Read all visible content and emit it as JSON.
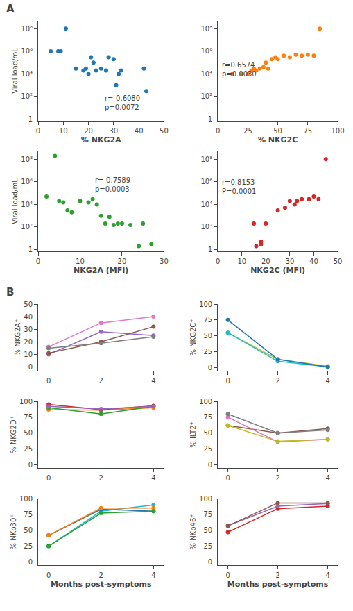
{
  "chart_data": [
    {
      "type": "scatter",
      "title": "A",
      "marker": "circle",
      "log": "y",
      "grid": false,
      "x": [
        5,
        8,
        9,
        11,
        15,
        18,
        19,
        20,
        21,
        22,
        23,
        25,
        27,
        28,
        30,
        31,
        32,
        33,
        42,
        43
      ],
      "values": [
        1000000.0,
        1000000.0,
        1000000.0,
        100000000.0,
        30000.0,
        20000.0,
        30000.0,
        10000.0,
        300000.0,
        100000.0,
        20000.0,
        30000.0,
        20000.0,
        300000.0,
        200000.0,
        1000.0,
        10000.0,
        20000.0,
        30000.0,
        300.0
      ],
      "xlabel": "% NKG2A",
      "ylabel": "Viral load/mL",
      "xlim": [
        0,
        50
      ],
      "xticks": [
        0,
        10,
        20,
        30,
        40,
        50
      ],
      "ylim": [
        0.7,
        500000000.0
      ],
      "yticks": [
        1,
        {
          "value": 100,
          "label": "10²"
        },
        {
          "value": 10000,
          "label": "10⁴"
        },
        {
          "value": 1000000,
          "label": "10⁶"
        },
        {
          "value": 100000000,
          "label": "10⁸"
        }
      ],
      "annotations": [
        "r=-0.6080\np=0.0072"
      ]
    },
    {
      "type": "scatter",
      "marker": "circle",
      "log": "y",
      "grid": false,
      "x": [
        12,
        20,
        25,
        28,
        30,
        32,
        35,
        38,
        40,
        42,
        45,
        48,
        50,
        55,
        60,
        65,
        70,
        75,
        80,
        85
      ],
      "values": [
        10000.0,
        10000.0,
        10000.0,
        20000.0,
        30000.0,
        20000.0,
        30000.0,
        40000.0,
        100000.0,
        30000.0,
        200000.0,
        300000.0,
        200000.0,
        400000.0,
        300000.0,
        500000.0,
        400000.0,
        500000.0,
        400000.0,
        100000000.0
      ],
      "xlabel": "% NKG2C",
      "xlim": [
        0,
        100
      ],
      "xticks": [
        0,
        25,
        50,
        75,
        100
      ],
      "ylim": [
        0.7,
        500000000.0
      ],
      "yticks": [
        1,
        {
          "value": 100,
          "label": "10²"
        },
        {
          "value": 10000,
          "label": "10⁴"
        },
        {
          "value": 1000000,
          "label": "10⁶"
        },
        {
          "value": 100000000,
          "label": "10⁸"
        }
      ],
      "annotations": [
        "r=0.6574\np=0.0030"
      ]
    },
    {
      "type": "scatter",
      "marker": "circle",
      "log": "y",
      "grid": false,
      "x": [
        2,
        4,
        5,
        6,
        7,
        8,
        10,
        12,
        13,
        14,
        15,
        16,
        17,
        18,
        19,
        20,
        22,
        24,
        25,
        27
      ],
      "values": [
        50000.0,
        200000000.0,
        20000.0,
        15000.0,
        3000.0,
        2000.0,
        20000.0,
        15000.0,
        30000.0,
        10000.0,
        1000.0,
        200.0,
        800.0,
        150.0,
        200.0,
        200.0,
        150.0,
        2,
        200.0,
        3
      ],
      "xlabel": "NKG2A (MFI)",
      "ylabel": "Viral load/mL",
      "xlim": [
        0,
        30
      ],
      "xticks": [
        0,
        10,
        20,
        30
      ],
      "ylim": [
        0.7,
        500000000.0
      ],
      "yticks": [
        1,
        {
          "value": 100,
          "label": "10²"
        },
        {
          "value": 10000,
          "label": "10⁴"
        },
        {
          "value": 1000000,
          "label": "10⁶"
        },
        {
          "value": 100000000,
          "label": "10⁸"
        }
      ],
      "annotations": [
        "r=-0.7589\np=0.0003"
      ]
    },
    {
      "type": "scatter",
      "marker": "circle",
      "log": "y",
      "grid": false,
      "x": [
        15,
        16,
        18,
        18,
        20,
        25,
        28,
        30,
        32,
        33,
        35,
        38,
        40,
        42,
        45
      ],
      "values": [
        200.0,
        2,
        5,
        3,
        200.0,
        3000.0,
        5000.0,
        20000.0,
        10000.0,
        20000.0,
        30000.0,
        30000.0,
        50000.0,
        30000.0,
        100000000.0
      ],
      "xlabel": "NKG2C (MFI)",
      "xlim": [
        0,
        50
      ],
      "xticks": [
        0,
        10,
        20,
        30,
        40,
        50
      ],
      "ylim": [
        0.7,
        500000000.0
      ],
      "yticks": [
        1,
        {
          "value": 100,
          "label": "10²"
        },
        {
          "value": 10000,
          "label": "10⁴"
        },
        {
          "value": 1000000,
          "label": "10⁶"
        },
        {
          "value": 100000000,
          "label": "10⁸"
        }
      ],
      "annotations": [
        "r=0.8153\nP=0.0001"
      ]
    },
    {
      "type": "line",
      "title": "B",
      "marker": "circle",
      "grid": false,
      "x": [
        0,
        2,
        4
      ],
      "series": [
        {
          "values": [
            10,
            28,
            25
          ]
        },
        {
          "values": [
            11,
            20,
            32
          ]
        },
        {
          "values": [
            16,
            35,
            40
          ]
        },
        {
          "values": [
            15,
            19,
            24
          ]
        }
      ],
      "ylabel": "% NKG2A⁺",
      "xlim": [
        -0.4,
        4.4
      ],
      "xticks": [
        0,
        2,
        4
      ],
      "ylim": [
        -3,
        50
      ],
      "yticks": [
        0,
        10,
        20,
        30,
        40,
        50
      ]
    },
    {
      "type": "line",
      "marker": "circle",
      "grid": false,
      "x": [
        0,
        2,
        4
      ],
      "series": [
        {
          "values": [
            55,
            13,
            2
          ]
        },
        {
          "values": [
            55,
            10,
            1
          ]
        },
        {
          "values": [
            75,
            13,
            1
          ]
        }
      ],
      "ylabel": "% NKG2C⁺",
      "xlim": [
        -0.4,
        4.4
      ],
      "xticks": [
        0,
        2,
        4
      ],
      "ylim": [
        -5,
        100
      ],
      "yticks": [
        0,
        25,
        50,
        75,
        100
      ]
    },
    {
      "type": "line",
      "marker": "circle",
      "grid": false,
      "x": [
        0,
        2,
        4
      ],
      "series": [
        {
          "values": [
            87,
            86,
            90
          ]
        },
        {
          "values": [
            90,
            80,
            92
          ]
        },
        {
          "values": [
            95,
            87,
            93
          ]
        },
        {
          "values": [
            92,
            88,
            92
          ]
        }
      ],
      "ylabel": "% NKG2D⁺",
      "xlim": [
        -0.4,
        4.4
      ],
      "xticks": [
        0,
        2,
        4
      ],
      "ylim": [
        -5,
        100
      ],
      "yticks": [
        0,
        25,
        50,
        75,
        100
      ]
    },
    {
      "type": "line",
      "marker": "circle",
      "grid": false,
      "x": [
        0,
        2,
        4
      ],
      "series": [
        {
          "values": [
            62,
            50,
            57
          ]
        },
        {
          "values": [
            75,
            36,
            40
          ]
        },
        {
          "values": [
            80,
            50,
            55
          ]
        },
        {
          "values": [
            62,
            37,
            40
          ]
        }
      ],
      "ylabel": "% ILT2⁺",
      "xlim": [
        -0.4,
        4.4
      ],
      "xticks": [
        0,
        2,
        4
      ],
      "ylim": [
        -5,
        100
      ],
      "yticks": [
        0,
        25,
        50,
        75,
        100
      ]
    },
    {
      "type": "line",
      "marker": "circle",
      "grid": false,
      "x": [
        0,
        2,
        4
      ],
      "series": [
        {
          "values": [
            25,
            80,
            90
          ]
        },
        {
          "values": [
            42,
            83,
            80
          ]
        },
        {
          "values": [
            42,
            85,
            85
          ]
        },
        {
          "values": [
            25,
            77,
            80
          ]
        }
      ],
      "ylabel": "% NKp30⁺",
      "xlabel": "Months post-symptoms",
      "xlim": [
        -0.4,
        4.4
      ],
      "xticks": [
        0,
        2,
        4
      ],
      "ylim": [
        -5,
        100
      ],
      "yticks": [
        0,
        25,
        50,
        75,
        100
      ]
    },
    {
      "type": "line",
      "marker": "circle",
      "grid": false,
      "x": [
        0,
        2,
        4
      ],
      "series": [
        {
          "values": [
            47,
            84,
            88
          ]
        },
        {
          "values": [
            57,
            88,
            92
          ]
        },
        {
          "values": [
            57,
            93,
            93
          ]
        }
      ],
      "ylabel": "% NKp46⁺",
      "xlabel": "Months post-symptoms",
      "xlim": [
        -0.4,
        4.4
      ],
      "xticks": [
        0,
        2,
        4
      ],
      "ylim": [
        -5,
        100
      ],
      "yticks": [
        0,
        25,
        50,
        75,
        100
      ]
    }
  ]
}
